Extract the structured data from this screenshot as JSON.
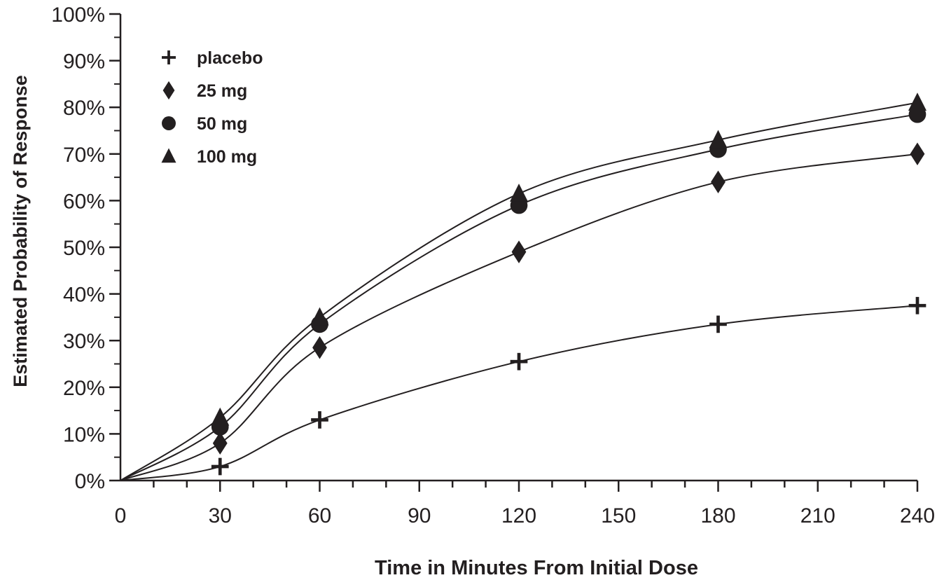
{
  "chart_data": {
    "type": "line",
    "title": "",
    "xlabel": "Time in Minutes From Initial Dose",
    "ylabel": "Estimated Probability of Response",
    "xlim": [
      0,
      240
    ],
    "ylim": [
      0,
      100
    ],
    "x_ticks": [
      "0",
      "30",
      "60",
      "90",
      "120",
      "150",
      "180",
      "210",
      "240"
    ],
    "y_ticks": [
      "0%",
      "10%",
      "20%",
      "30%",
      "40%",
      "50%",
      "60%",
      "70%",
      "80%",
      "90%",
      "100%"
    ],
    "grid": false,
    "legend_position": "top-left",
    "x": [
      30,
      60,
      120,
      180,
      240
    ],
    "series": [
      {
        "name": "placebo",
        "marker": "plus",
        "color": "#231f20",
        "values": [
          3,
          13,
          25.5,
          33.5,
          37.5
        ]
      },
      {
        "name": "25 mg",
        "marker": "diamond",
        "color": "#231f20",
        "values": [
          8,
          28.5,
          49,
          64,
          70
        ]
      },
      {
        "name": "50 mg",
        "marker": "circle",
        "color": "#231f20",
        "values": [
          11.5,
          33.5,
          59,
          71,
          78.5
        ]
      },
      {
        "name": "100 mg",
        "marker": "triangle",
        "color": "#231f20",
        "values": [
          13.5,
          35,
          61.5,
          73,
          81
        ]
      }
    ]
  }
}
